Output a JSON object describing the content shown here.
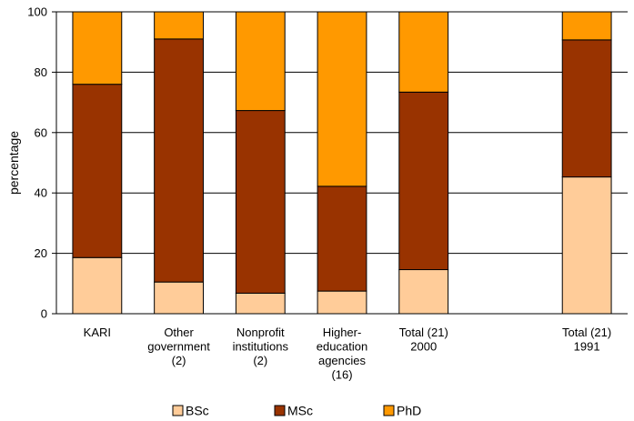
{
  "chart_data": {
    "type": "bar",
    "stacked": true,
    "ylabel": "percentage",
    "ylim": [
      0,
      100
    ],
    "yticks": [
      0,
      20,
      40,
      60,
      80,
      100
    ],
    "grid": true,
    "legend_position": "bottom",
    "categories": [
      [
        "KARI"
      ],
      [
        "Other",
        "government",
        "(2)"
      ],
      [
        "Nonprofit",
        "institutions",
        "(2)"
      ],
      [
        "Higher-",
        "education",
        "agencies",
        "(16)"
      ],
      [
        "Total (21)",
        "2000"
      ],
      null,
      [
        "Total (21)",
        "1991"
      ]
    ],
    "series": [
      {
        "name": "BSc",
        "color": "#FFCC99",
        "values": [
          18.6,
          10.5,
          6.8,
          7.5,
          14.6,
          null,
          45.3
        ]
      },
      {
        "name": "MSc",
        "color": "#993300",
        "values": [
          57.4,
          80.5,
          60.5,
          34.7,
          58.8,
          null,
          45.4
        ]
      },
      {
        "name": "PhD",
        "color": "#FF9900",
        "values": [
          24.0,
          9.0,
          32.7,
          57.8,
          26.6,
          null,
          9.3
        ]
      }
    ]
  }
}
